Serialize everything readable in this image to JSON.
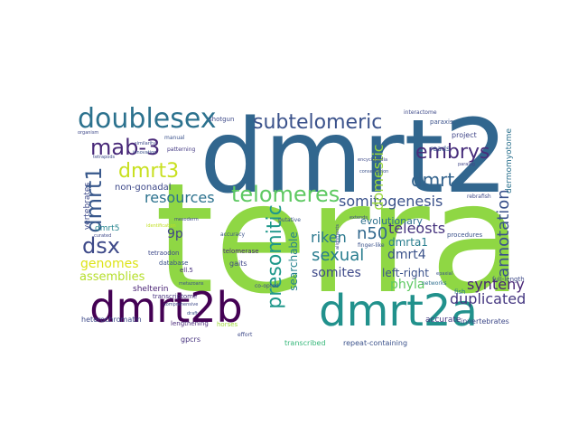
{
  "words": [
    {
      "text": "terra",
      "color": "#8fd744"
    },
    {
      "text": "dmrt2",
      "color": "#31668e"
    },
    {
      "text": "dmrt2b",
      "color": "#440154"
    },
    {
      "text": "dmrt2a",
      "color": "#21918c"
    },
    {
      "text": "doublesex",
      "color": "#2c728e"
    },
    {
      "text": "subtelomeric",
      "color": "#3b528b"
    },
    {
      "text": "mab-3",
      "color": "#482878"
    },
    {
      "text": "dmrt3",
      "color": "#c8e020"
    },
    {
      "text": "embrys",
      "color": "#472d7b"
    },
    {
      "text": "dmrt",
      "color": "#33638d"
    },
    {
      "text": "telomeres",
      "color": "#5ec962"
    },
    {
      "text": "resources",
      "color": "#2c728e"
    },
    {
      "text": "somitogenesis",
      "color": "#3b528b"
    },
    {
      "text": "dmrt1",
      "color": "#38588c"
    },
    {
      "text": "dsx",
      "color": "#3e4a89"
    },
    {
      "text": "presomitic",
      "color": "#1f988b"
    },
    {
      "text": "domestic",
      "color": "#9bd93c"
    },
    {
      "text": "annotation",
      "color": "#3b528b"
    },
    {
      "text": "riken",
      "color": "#2a788e"
    },
    {
      "text": "n50",
      "color": "#31688e"
    },
    {
      "text": "sexual",
      "color": "#287c8e"
    },
    {
      "text": "teleosts",
      "color": "#46337e"
    },
    {
      "text": "phyla",
      "color": "#5ec962"
    },
    {
      "text": "somites",
      "color": "#3e4989"
    },
    {
      "text": "synteny",
      "color": "#482475"
    },
    {
      "text": "duplicated",
      "color": "#453781"
    },
    {
      "text": "genomes",
      "color": "#dde318"
    },
    {
      "text": "assemblies",
      "color": "#b5de2b"
    },
    {
      "text": "searchable",
      "color": "#26828e"
    },
    {
      "text": "dmrt4",
      "color": "#3b528b"
    },
    {
      "text": "9p",
      "color": "#414487"
    },
    {
      "text": "dmrta1",
      "color": "#287d8e"
    },
    {
      "text": "left-right",
      "color": "#3b528b"
    },
    {
      "text": "evolutionary",
      "color": "#2d708e"
    },
    {
      "text": "non-gonadal",
      "color": "#3e4989"
    },
    {
      "text": "dmrt5",
      "color": "#25848e"
    },
    {
      "text": "vertebrates",
      "color": "#3e4a89"
    },
    {
      "text": "shelterin",
      "color": "#482173"
    },
    {
      "text": "transcribed",
      "color": "#35b779"
    },
    {
      "text": "repeat-containing",
      "color": "#3b528b"
    },
    {
      "text": "accurate",
      "color": "#453882"
    },
    {
      "text": "invertebrates",
      "color": "#3e4989"
    },
    {
      "text": "heterochromatin",
      "color": "#3e4a89"
    },
    {
      "text": "lengthening",
      "color": "#482878"
    },
    {
      "text": "horses",
      "color": "#9fda3a"
    },
    {
      "text": "gpcrs",
      "color": "#46327e"
    },
    {
      "text": "dermomyotome",
      "color": "#2c728e"
    },
    {
      "text": "project",
      "color": "#404688"
    },
    {
      "text": "reads",
      "color": "#3a548c"
    },
    {
      "text": "procedures",
      "color": "#3b528b"
    },
    {
      "text": "full-length",
      "color": "#3e4a89"
    },
    {
      "text": "fish",
      "color": "#2a778e"
    },
    {
      "text": "networks",
      "color": "#2e6e8e"
    },
    {
      "text": "ell.5",
      "color": "#472f7d"
    },
    {
      "text": "gaits",
      "color": "#3f4788"
    },
    {
      "text": "telomerase",
      "color": "#482878"
    },
    {
      "text": "transcriptome",
      "color": "#46317e"
    },
    {
      "text": "database",
      "color": "#3b528b"
    },
    {
      "text": "tetraodon",
      "color": "#3e4989"
    },
    {
      "text": "accuracy",
      "color": "#3b528b"
    },
    {
      "text": "finger-like",
      "color": "#3b528b"
    },
    {
      "text": "shotgun",
      "color": "#3e4a89"
    },
    {
      "text": "patterning",
      "color": "#443a83"
    },
    {
      "text": "manual",
      "color": "#3b528b"
    },
    {
      "text": "tetrapods",
      "color": "#3e4a89"
    },
    {
      "text": "innovation",
      "color": "#3b528b"
    },
    {
      "text": "similarity",
      "color": "#3e4989"
    },
    {
      "text": "conservation",
      "color": "#3b528b"
    },
    {
      "text": "paralog",
      "color": "#404688"
    },
    {
      "text": "interactome",
      "color": "#3e4989"
    },
    {
      "text": "paraxis",
      "color": "#3b528b"
    },
    {
      "text": "encyclopedia",
      "color": "#3e4a89"
    },
    {
      "text": "comprehensive",
      "color": "#3e4989"
    },
    {
      "text": "mesoderm",
      "color": "#3e4989"
    },
    {
      "text": "identification",
      "color": "#c2df23"
    },
    {
      "text": "co-opted",
      "color": "#3e4a89"
    },
    {
      "text": "putative",
      "color": "#3b528b"
    },
    {
      "text": "extends",
      "color": "#3e4989"
    },
    {
      "text": "alignments",
      "color": "#3e4a89"
    },
    {
      "text": "epaxial",
      "color": "#3b528b"
    },
    {
      "text": "rebrafish",
      "color": "#3e4989"
    },
    {
      "text": "metazoans",
      "color": "#3b528b"
    },
    {
      "text": "effort",
      "color": "#3e4a89"
    },
    {
      "text": "draft",
      "color": "#3b528b"
    },
    {
      "text": "curated",
      "color": "#3e4989"
    },
    {
      "text": "organism",
      "color": "#3e4989"
    }
  ]
}
